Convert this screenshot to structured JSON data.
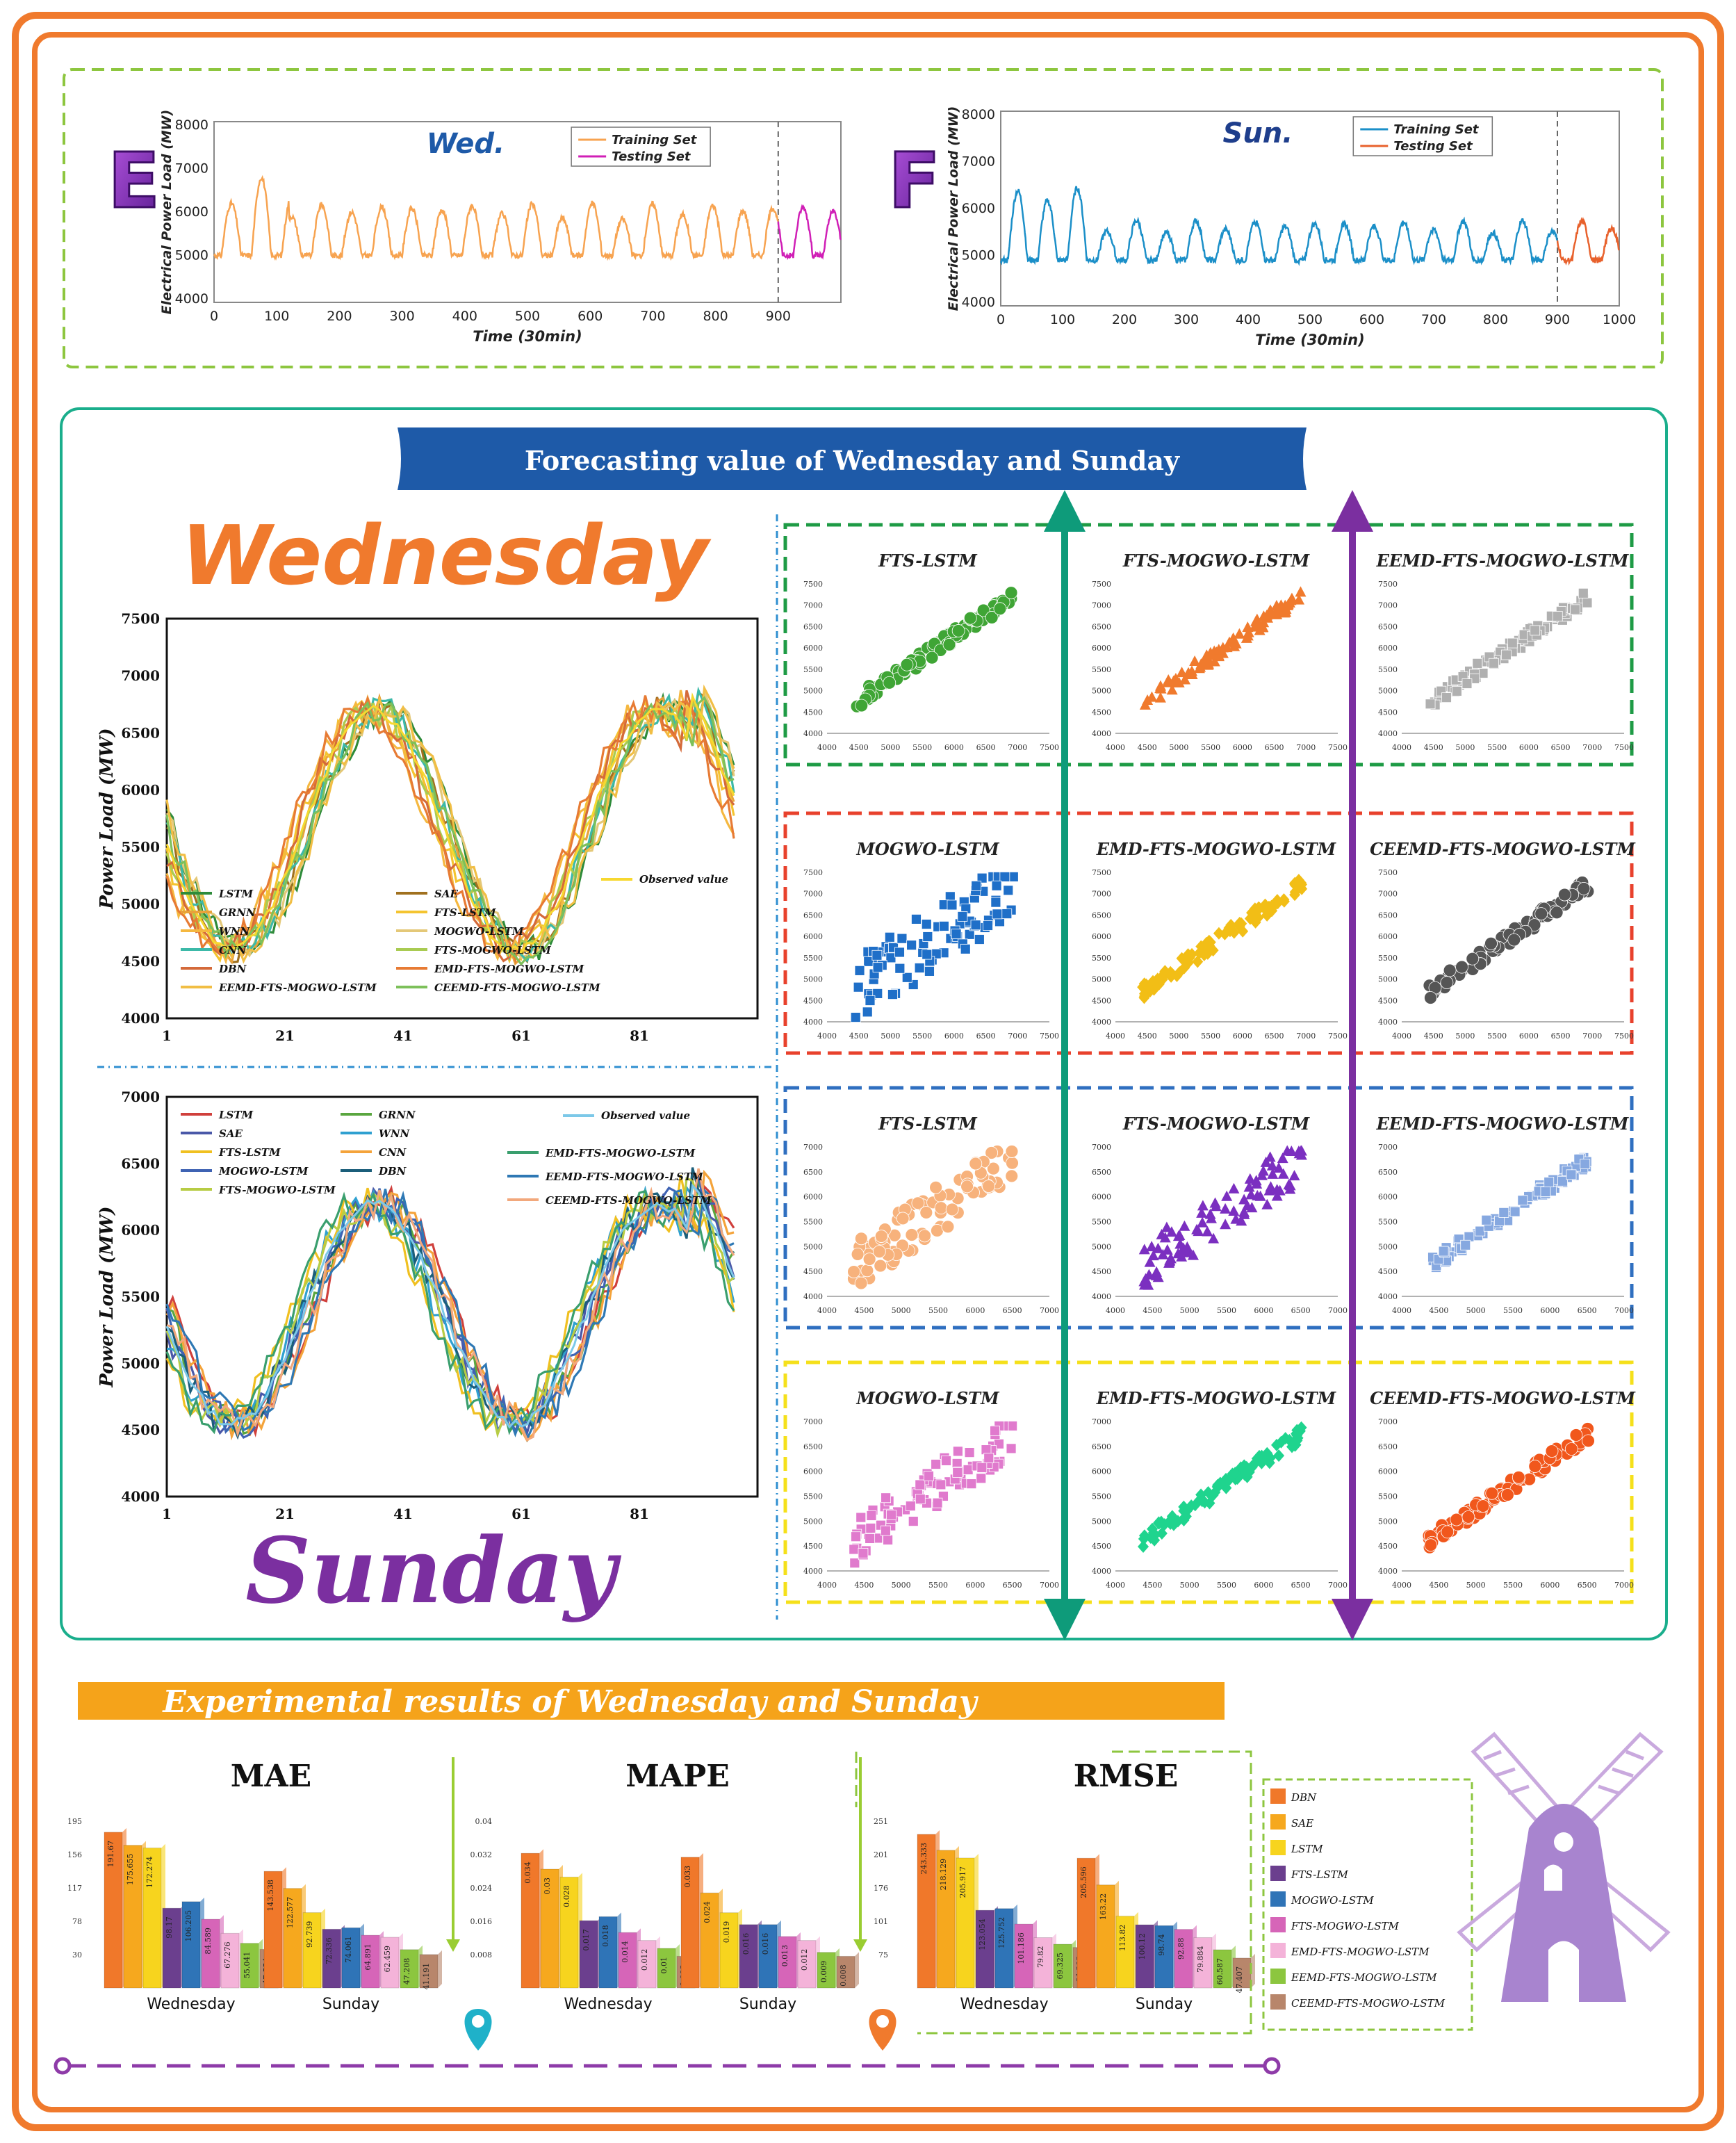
{
  "colors": {
    "frame": "#F07A2D",
    "panel_top": "#8DC63F",
    "panel_mid": "#1AAE8C",
    "banner_blue": "#1E5AA8",
    "banner_orange": "#F5A31A",
    "purple": "#7B2FA0",
    "teal": "#0E9B7A"
  },
  "top_panel": {
    "left": {
      "letter": "E",
      "day": "Wed.",
      "ylabel": "Electrical Power Load (MW)",
      "xlabel": "Time (30min)",
      "legend": [
        "Training Set",
        "Testing Set"
      ],
      "y_ticks": [
        "4000",
        "5000",
        "6000",
        "7000",
        "8000"
      ],
      "x_ticks": [
        "0",
        "100",
        "200",
        "300",
        "400",
        "500",
        "600",
        "700",
        "800",
        "900"
      ],
      "colors": [
        "#F7A350",
        "#D01FB6"
      ]
    },
    "right": {
      "letter": "F",
      "day": "Sun.",
      "ylabel": "Electrical Power Load (MW)",
      "xlabel": "Time (30min)",
      "legend": [
        "Training Set",
        "Testing Set"
      ],
      "y_ticks": [
        "4000",
        "5000",
        "6000",
        "7000",
        "8000"
      ],
      "x_ticks": [
        "0",
        "100",
        "200",
        "300",
        "400",
        "500",
        "600",
        "700",
        "800",
        "900",
        "1000"
      ],
      "colors": [
        "#1B8FC8",
        "#E8612C"
      ]
    }
  },
  "mid_banner": "Forecasting value of Wednesday and Sunday",
  "wednesday_title": "Wednesday",
  "sunday_title": "Sunday",
  "line_charts": {
    "wed": {
      "ylabel": "Power Load (MW)",
      "y_ticks": [
        "4000",
        "4500",
        "5000",
        "5500",
        "6000",
        "6500",
        "7000",
        "7500"
      ],
      "x_ticks": [
        "1",
        "21",
        "41",
        "61",
        "81"
      ],
      "observed": "Observed value",
      "legend": [
        "LSTM",
        "SAE",
        "GRNN",
        "FTS-LSTM",
        "WNN",
        "MOGWO-LSTM",
        "CNN",
        "FTS-MOGWO-LSTM",
        "DBN",
        "EMD-FTS-MOGWO-LSTM",
        "EEMD-FTS-MOGWO-LSTM",
        "CEEMD-FTS-MOGWO-LSTM"
      ]
    },
    "sun": {
      "ylabel": "Power Load (MW)",
      "y_ticks": [
        "4000",
        "4500",
        "5000",
        "5500",
        "6000",
        "6500",
        "7000"
      ],
      "x_ticks": [
        "1",
        "21",
        "41",
        "61",
        "81"
      ],
      "observed": "Observed value",
      "legend": [
        "LSTM",
        "GRNN",
        "SAE",
        "WNN",
        "FTS-LSTM",
        "CNN",
        "MOGWO-LSTM",
        "DBN",
        "FTS-MOGWO-LSTM",
        "EMD-FTS-MOGWO-LSTM",
        "EEMD-FTS-MOGWO-LSTM",
        "CEEMD-FTS-MOGWO-LSTM"
      ]
    }
  },
  "scatter_titles": {
    "wed": [
      "FTS-LSTM",
      "FTS-MOGWO-LSTM",
      "EEMD-FTS-MOGWO-LSTM",
      "MOGWO-LSTM",
      "EMD-FTS-MOGWO-LSTM",
      "CEEMD-FTS-MOGWO-LSTM"
    ],
    "sun": [
      "FTS-LSTM",
      "FTS-MOGWO-LSTM",
      "EEMD-FTS-MOGWO-LSTM",
      "MOGWO-LSTM",
      "EMD-FTS-MOGWO-LSTM",
      "CEEMD-FTS-MOGWO-LSTM"
    ]
  },
  "scatter_axes": {
    "wed_x": [
      "4000",
      "4500",
      "5000",
      "5500",
      "6000",
      "6500",
      "7000",
      "7500"
    ],
    "wed_y": [
      "4000",
      "4500",
      "5000",
      "5500",
      "6000",
      "6500",
      "7000",
      "7500"
    ],
    "sun_x": [
      "4000",
      "4500",
      "5000",
      "5500",
      "6000",
      "6500",
      "7000"
    ],
    "sun_y": [
      "4000",
      "4500",
      "5000",
      "5500",
      "6000",
      "6500",
      "7000"
    ]
  },
  "bottom_banner": "Experimental results of Wednesday and Sunday",
  "chart_data": [
    {
      "type": "bar",
      "title": "MAE",
      "groups": [
        "Wednesday",
        "Sunday"
      ],
      "y_ticks": [
        "30",
        "78",
        "117",
        "156",
        "195"
      ],
      "wednesday": [
        "191.67",
        "175.655",
        "172.274",
        "98.17",
        "106.205",
        "84.589",
        "67.276",
        "55.041",
        "47.554"
      ],
      "sunday": [
        "143.538",
        "122.577",
        "92.739",
        "72.336",
        "74.061",
        "64.891",
        "62.459",
        "47.208",
        "41.191"
      ]
    },
    {
      "type": "bar",
      "title": "MAPE",
      "groups": [
        "Wednesday",
        "Sunday"
      ],
      "y_ticks": [
        "0.008",
        "0.016",
        "0.024",
        "0.032",
        "0.04"
      ],
      "wednesday": [
        "0.034",
        "0.03",
        "0.028",
        "0.017",
        "0.018",
        "0.014",
        "0.012",
        "0.01",
        "0.008"
      ],
      "sunday": [
        "0.033",
        "0.024",
        "0.019",
        "0.016",
        "0.016",
        "0.013",
        "0.012",
        "0.009",
        "0.008"
      ]
    },
    {
      "type": "bar",
      "title": "RMSE",
      "groups": [
        "Wednesday",
        "Sunday"
      ],
      "y_ticks": [
        "75",
        "101",
        "176",
        "201",
        "251"
      ],
      "wednesday": [
        "243.333",
        "218.129",
        "205.917",
        "123.054",
        "125.752",
        "101.186",
        "79.82",
        "69.325",
        "64.203"
      ],
      "sunday": [
        "205.596",
        "163.22",
        "113.82",
        "100.12",
        "98.74",
        "92.88",
        "79.884",
        "60.587",
        "47.407"
      ]
    }
  ],
  "bar_legend": {
    "labels": [
      "DBN",
      "SAE",
      "LSTM",
      "FTS-LSTM",
      "MOGWO-LSTM",
      "FTS-MOGWO-LSTM",
      "EMD-FTS-MOGWO-LSTM",
      "EEMD-FTS-MOGWO-LSTM",
      "CEEMD-FTS-MOGWO-LSTM"
    ],
    "colors": [
      "#F0782A",
      "#F6A81E",
      "#F7D41E",
      "#6B3F8E",
      "#2F74B7",
      "#D665B8",
      "#F4B3D9",
      "#8CC63F",
      "#B8866B"
    ]
  }
}
